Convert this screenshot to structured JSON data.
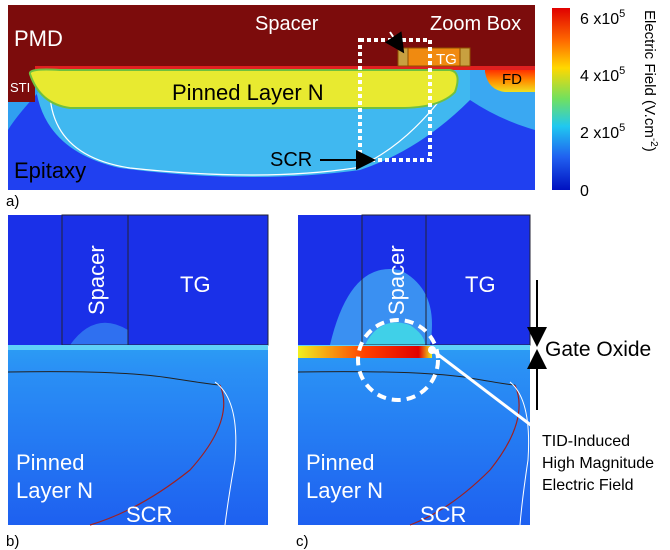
{
  "panel_a": {
    "label": "a)",
    "pmd": "PMD",
    "sti": "STI",
    "spacer": "Spacer",
    "zoom_box": "Zoom Box",
    "tg": "TG",
    "fd": "FD",
    "pinned_layer": "Pinned Layer N",
    "scr": "SCR",
    "epitaxy": "Epitaxy"
  },
  "colorbar": {
    "title": "Electric Field (V.cm",
    "title_exp": "-2",
    "title_end": ")",
    "ticks": [
      {
        "base": "6 x10",
        "exp": "5"
      },
      {
        "base": "4 x10",
        "exp": "5"
      },
      {
        "base": "2 x10",
        "exp": "5"
      },
      {
        "base": "0"
      }
    ]
  },
  "panel_b": {
    "label": "b)",
    "spacer": "Spacer",
    "tg": "TG",
    "pinned_layer": [
      "Pinned",
      "Layer N"
    ],
    "scr": "SCR"
  },
  "panel_c": {
    "label": "c)",
    "spacer": "Spacer",
    "tg": "TG",
    "pinned_layer": [
      "Pinned",
      "Layer N"
    ],
    "scr": "SCR",
    "gate_oxide": "Gate Oxide",
    "annotation": [
      "TID-Induced",
      "High Magnitude",
      "Electric Field"
    ]
  }
}
